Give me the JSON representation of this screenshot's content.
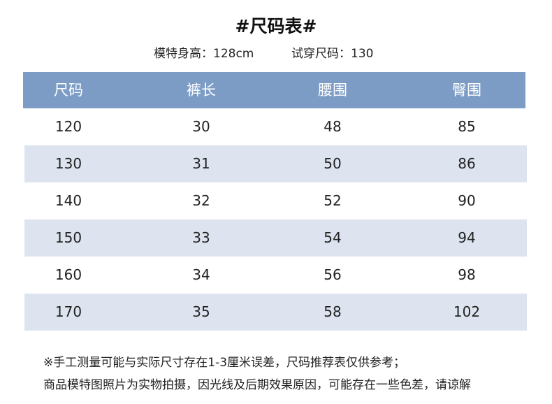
{
  "header": {
    "title": "#尺码表#",
    "model_height": "模特身高：128cm",
    "model_size": "试穿尺码：130"
  },
  "table": {
    "columns": [
      "尺码",
      "裤长",
      "腰围",
      "臀围"
    ],
    "rows": [
      [
        "120",
        "30",
        "48",
        "85"
      ],
      [
        "130",
        "31",
        "50",
        "86"
      ],
      [
        "140",
        "32",
        "52",
        "90"
      ],
      [
        "150",
        "33",
        "54",
        "94"
      ],
      [
        "160",
        "34",
        "56",
        "98"
      ],
      [
        "170",
        "35",
        "58",
        "102"
      ]
    ]
  },
  "notes": [
    "※手工测量可能与实际尺寸存在1-3厘米误差，尺码推荐表仅供参考；",
    "商品模特图照片为实物拍摄，因光线及后期效果原因，可能存在一些色差，请谅解"
  ]
}
